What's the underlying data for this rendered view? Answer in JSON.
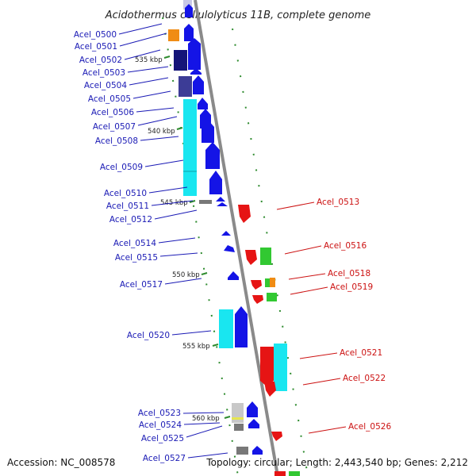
{
  "title": "Acidothermus cellulolyticus 11B, complete genome",
  "footer": {
    "accession": "Accession: NC_008578",
    "topology": "Topology: circular; Length: 2,443,540 bp; Genes: 2,212"
  },
  "colors": {
    "backbone": "#8a8a8a",
    "tick": "#2e8b2e",
    "left_label": "#1a1ab5",
    "right_label": "#cc1111",
    "gene_blue": "#1414e6",
    "gene_navy": "#141478",
    "gene_slate": "#3c3c96",
    "gene_cyan": "#19e6f0",
    "gene_orange": "#f08c14",
    "gene_red": "#e61414",
    "gene_green": "#32c832",
    "gene_gray": "#787878",
    "gene_lightgray": "#c8c8c8",
    "gene_yellow": "#e6e650"
  },
  "kbp_ticks": [
    "535 kbp",
    "540 kbp",
    "545 kbp",
    "550 kbp",
    "555 kbp",
    "560 kbp"
  ],
  "genes_left": [
    "Acel_0500",
    "Acel_0501",
    "Acel_0502",
    "Acel_0503",
    "Acel_0504",
    "Acel_0505",
    "Acel_0506",
    "Acel_0507",
    "Acel_0508",
    "Acel_0509",
    "Acel_0510",
    "Acel_0511",
    "Acel_0512",
    "Acel_0514",
    "Acel_0515",
    "Acel_0517",
    "Acel_0520",
    "Acel_0523",
    "Acel_0524",
    "Acel_0525",
    "Acel_0527"
  ],
  "genes_right": [
    "Acel_0513",
    "Acel_0516",
    "Acel_0518",
    "Acel_0519",
    "Acel_0521",
    "Acel_0522",
    "Acel_0526"
  ]
}
